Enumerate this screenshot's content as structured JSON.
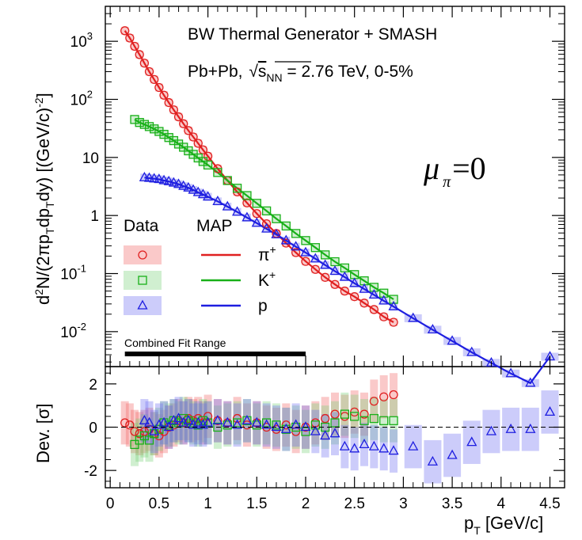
{
  "chart_data": [
    {
      "type": "scatter",
      "title": "BW Thermal Generator + SMASH",
      "subtitle_pre": "Pb+Pb, ",
      "subtitle_sqrt": "s",
      "subtitle_sub": "NN",
      "subtitle_post": " = 2.76 TeV, 0-5%",
      "annotation_mu": "μ",
      "annotation_sub": "π",
      "annotation_rest": "=0",
      "ylabel": "d²N/(2πp_T dp_T dy) [(GeV/c)^-2]",
      "yscale": "log",
      "ylim": [
        0.0025,
        4000
      ],
      "xlim": [
        -0.05,
        4.65
      ],
      "y_ticks": [
        {
          "v": 1000,
          "base": "10",
          "exp": "3"
        },
        {
          "v": 100,
          "base": "10",
          "exp": "2"
        },
        {
          "v": 10,
          "base": "10",
          "exp": ""
        },
        {
          "v": 1,
          "base": "1",
          "exp": ""
        },
        {
          "v": 0.1,
          "base": "10",
          "exp": "-1"
        },
        {
          "v": 0.01,
          "base": "10",
          "exp": "-2"
        }
      ],
      "legend": {
        "data_header": "Data",
        "map_header": "MAP",
        "entries": [
          {
            "label": "π",
            "sup": "+",
            "color": "#e02020",
            "marker": "circle"
          },
          {
            "label": "K",
            "sup": "+",
            "color": "#18b018",
            "marker": "square"
          },
          {
            "label": "p",
            "sup": "",
            "color": "#1e1ee0",
            "marker": "triangle"
          }
        ]
      },
      "fit_range": {
        "label": "Combined Fit Range",
        "x": [
          0.15,
          2.0
        ]
      },
      "series": [
        {
          "name": "π+",
          "color": "#e02020",
          "marker": "circle",
          "x": [
            0.15,
            0.2,
            0.25,
            0.3,
            0.35,
            0.4,
            0.45,
            0.5,
            0.55,
            0.6,
            0.65,
            0.7,
            0.75,
            0.8,
            0.85,
            0.9,
            0.95,
            1.0,
            1.1,
            1.2,
            1.3,
            1.4,
            1.5,
            1.6,
            1.7,
            1.8,
            1.9,
            2.0,
            2.1,
            2.2,
            2.3,
            2.4,
            2.5,
            2.6,
            2.7,
            2.8,
            2.9
          ],
          "y": [
            1520,
            1140,
            820,
            590,
            420,
            300,
            220,
            160,
            118,
            88,
            66,
            50,
            38,
            29,
            22.5,
            17.5,
            13.5,
            10.5,
            6.4,
            4.0,
            2.55,
            1.65,
            1.08,
            0.72,
            0.49,
            0.335,
            0.23,
            0.162,
            0.118,
            0.086,
            0.065,
            0.05,
            0.04,
            0.031,
            0.024,
            0.018,
            0.0145
          ],
          "y_scaled_note": "",
          "fit_x": [
            0.12,
            3.0
          ],
          "dev": [
            0.2,
            0.1,
            -0.2,
            -0.3,
            -0.2,
            -0.1,
            -0.3,
            -0.4,
            -0.2,
            0.0,
            0.1,
            0.3,
            0.2,
            0.4,
            0.3,
            0.4,
            0.2,
            0.5,
            0.3,
            0.2,
            0.4,
            0.1,
            0.2,
            0.0,
            -0.1,
            0.1,
            -0.2,
            0.0,
            0.2,
            0.4,
            0.6,
            0.5,
            0.7,
            0.6,
            1.2,
            1.4,
            1.5
          ]
        },
        {
          "name": "K+",
          "color": "#18b018",
          "marker": "square",
          "x": [
            0.25,
            0.3,
            0.35,
            0.4,
            0.45,
            0.5,
            0.55,
            0.6,
            0.65,
            0.7,
            0.75,
            0.8,
            0.85,
            0.9,
            0.95,
            1.0,
            1.1,
            1.2,
            1.3,
            1.4,
            1.5,
            1.6,
            1.7,
            1.8,
            1.9,
            2.0,
            2.1,
            2.2,
            2.3,
            2.4,
            2.5,
            2.6,
            2.7,
            2.8,
            2.9
          ],
          "y": [
            45,
            40,
            37,
            34,
            31,
            28,
            25,
            22,
            19.5,
            17,
            15,
            13,
            11.3,
            9.8,
            8.5,
            7.4,
            5.5,
            4.0,
            2.95,
            2.2,
            1.62,
            1.2,
            0.88,
            0.66,
            0.49,
            0.37,
            0.28,
            0.21,
            0.16,
            0.125,
            0.096,
            0.075,
            0.058,
            0.046,
            0.036
          ],
          "dev": [
            -0.8,
            -0.6,
            -0.4,
            -0.6,
            -0.3,
            -0.1,
            0.2,
            0.1,
            0.3,
            0.2,
            0.4,
            0.3,
            0.2,
            0.1,
            0.3,
            0.2,
            0.0,
            0.1,
            0.2,
            0.3,
            0.1,
            0.2,
            0.1,
            -0.1,
            0.0,
            -0.2,
            0.1,
            0.0,
            0.2,
            0.6,
            0.5,
            0.3,
            0.4,
            0.3,
            0.3
          ]
        },
        {
          "name": "p",
          "color": "#1e1ee0",
          "marker": "triangle",
          "x": [
            0.35,
            0.4,
            0.45,
            0.5,
            0.55,
            0.6,
            0.65,
            0.7,
            0.75,
            0.8,
            0.85,
            0.9,
            0.95,
            1.0,
            1.1,
            1.2,
            1.3,
            1.4,
            1.5,
            1.6,
            1.7,
            1.8,
            1.9,
            2.0,
            2.1,
            2.2,
            2.3,
            2.4,
            2.5,
            2.6,
            2.7,
            2.8,
            2.9,
            3.1,
            3.3,
            3.5,
            3.7,
            3.9,
            4.1,
            4.3,
            4.5
          ],
          "y": [
            4.5,
            4.4,
            4.3,
            4.2,
            4.0,
            3.85,
            3.65,
            3.45,
            3.2,
            3.0,
            2.75,
            2.5,
            2.3,
            2.1,
            1.75,
            1.42,
            1.15,
            0.92,
            0.74,
            0.59,
            0.47,
            0.37,
            0.29,
            0.23,
            0.18,
            0.14,
            0.11,
            0.087,
            0.068,
            0.054,
            0.043,
            0.034,
            0.027,
            0.017,
            0.0108,
            0.0069,
            0.0044,
            0.0029,
            0.0019,
            0.0013,
            0.0037
          ],
          "dev": [
            0.3,
            0.2,
            -0.2,
            0.1,
            0.2,
            0.0,
            0.3,
            0.4,
            0.2,
            0.3,
            0.1,
            0.2,
            0.1,
            0.2,
            0.3,
            0.2,
            0.1,
            0.3,
            0.2,
            0.1,
            0.0,
            -0.1,
            0.1,
            0.0,
            -0.2,
            -0.4,
            -0.3,
            -0.9,
            -1.0,
            -0.8,
            -0.9,
            -1.0,
            -1.1,
            -0.9,
            -1.6,
            -1.3,
            -0.7,
            -0.2,
            -0.1,
            -0.1,
            0.7
          ]
        }
      ]
    },
    {
      "type": "scatter",
      "ylabel": "Dev. [σ]",
      "xlabel_base": "p",
      "xlabel_sub": "T",
      "xlabel_rest": " [GeV/c]",
      "ylim": [
        -2.8,
        2.8
      ],
      "y_ticks": [
        "2",
        "0",
        "-2"
      ],
      "x_ticks": [
        "0",
        "0.5",
        "1",
        "1.5",
        "2",
        "2.5",
        "3",
        "3.5",
        "4",
        "4.5"
      ],
      "reference_line": 0
    }
  ]
}
